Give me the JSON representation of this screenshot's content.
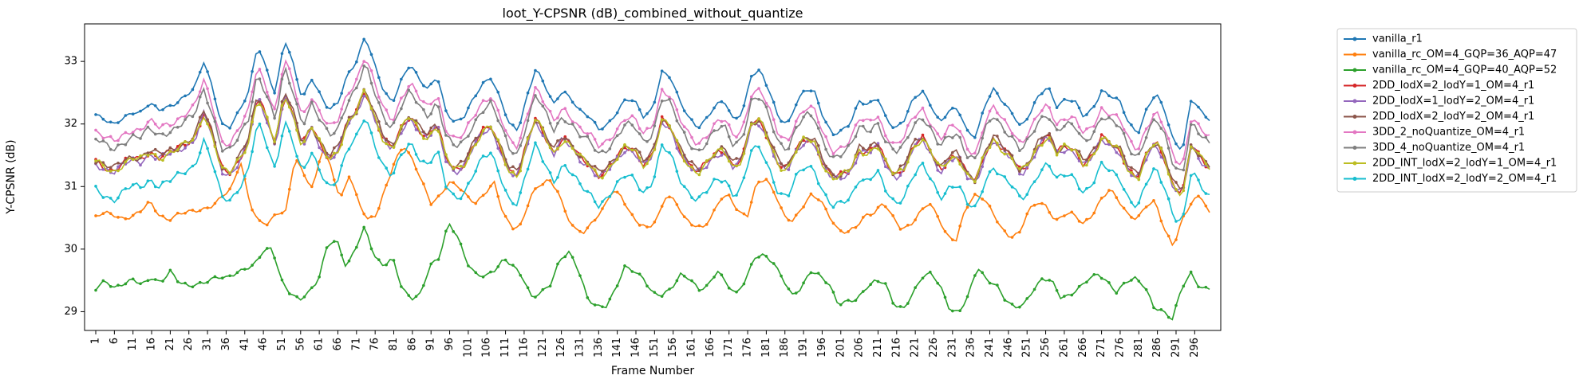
{
  "chart_data": {
    "type": "line",
    "title": "loot_Y-CPSNR (dB)_combined_without_quantize",
    "xlabel": "Frame Number",
    "ylabel": "Y-CPSNR (dB)",
    "xlim": [
      1,
      300
    ],
    "ylim": [
      28.7,
      33.6
    ],
    "x_tick_labels": [
      "1",
      "6",
      "11",
      "16",
      "21",
      "26",
      "31",
      "36",
      "41",
      "46",
      "51",
      "56",
      "61",
      "66",
      "71",
      "76",
      "81",
      "86",
      "91",
      "96",
      "101",
      "106",
      "111",
      "116",
      "121",
      "126",
      "131",
      "136",
      "141",
      "146",
      "151",
      "156",
      "161",
      "166",
      "171",
      "176",
      "181",
      "186",
      "191",
      "196",
      "201",
      "206",
      "211",
      "216",
      "221",
      "226",
      "231",
      "236",
      "241",
      "246",
      "251",
      "256",
      "261",
      "266",
      "271",
      "276",
      "281",
      "286",
      "291",
      "296"
    ],
    "y_ticks": [
      29,
      30,
      31,
      32,
      33
    ],
    "grid": false,
    "legend_position": "outside-right",
    "series": [
      {
        "name": "vanilla_r1",
        "color": "#1f77b4",
        "base": 32.25,
        "amp": 1.0,
        "values": [
          32.15,
          32.05,
          31.98,
          32.1,
          32.2,
          32.18,
          32.32,
          32.22,
          32.28,
          32.35,
          32.45,
          32.55,
          33.0,
          32.6,
          32.0,
          31.95,
          32.2,
          32.5,
          33.28,
          32.9,
          32.45,
          33.35,
          32.95,
          32.4,
          32.75,
          32.45,
          32.2,
          32.35,
          32.8,
          33.0,
          33.4,
          32.95,
          32.55,
          32.35,
          32.7,
          32.95,
          32.7,
          32.55,
          32.8,
          32.2,
          32.0,
          32.1,
          32.4,
          32.65,
          32.75,
          32.4,
          32.0,
          31.9,
          32.45,
          32.9,
          32.6,
          32.3,
          32.55,
          32.4,
          32.2,
          32.1,
          31.9,
          32.0,
          32.2,
          32.4,
          32.35,
          32.1,
          32.25,
          32.85,
          32.75,
          32.35,
          32.1,
          31.95,
          32.1,
          32.3,
          32.35,
          32.05,
          32.2,
          32.8,
          32.85,
          32.5,
          32.1,
          32.0,
          32.35,
          32.55,
          32.5,
          32.1,
          31.85,
          31.9,
          32.0,
          32.35,
          32.3,
          32.45,
          32.1,
          31.9,
          32.05,
          32.4,
          32.55,
          32.3,
          32.0,
          32.2,
          32.25,
          31.9,
          31.8,
          32.3,
          32.55,
          32.35,
          32.2,
          31.95,
          32.15,
          32.45,
          32.6,
          32.3,
          32.4,
          32.35,
          32.1,
          32.25,
          32.55,
          32.45,
          32.35,
          32.0,
          31.85,
          32.25,
          32.5,
          32.2,
          31.7,
          31.6,
          32.45,
          32.2,
          32.05
        ]
      },
      {
        "name": "vanilla_rc_OM=4_GQP=36_AQP=47",
        "color": "#ff7f0e",
        "base": 30.6,
        "amp": 1.0,
        "values": [
          30.5,
          30.58,
          30.55,
          30.5,
          30.52,
          30.6,
          30.75,
          30.55,
          30.48,
          30.55,
          30.58,
          30.6,
          30.65,
          30.72,
          30.85,
          30.95,
          31.4,
          30.75,
          30.45,
          30.4,
          30.55,
          30.6,
          31.5,
          31.2,
          30.95,
          31.6,
          31.3,
          30.8,
          31.2,
          30.75,
          30.45,
          30.55,
          31.0,
          31.4,
          31.65,
          31.4,
          31.1,
          30.75,
          30.85,
          31.05,
          31.0,
          30.85,
          30.75,
          30.9,
          31.05,
          30.55,
          30.35,
          30.4,
          30.85,
          31.0,
          31.1,
          30.95,
          30.55,
          30.3,
          30.25,
          30.45,
          30.65,
          30.95,
          30.85,
          30.55,
          30.4,
          30.35,
          30.5,
          30.85,
          30.75,
          30.5,
          30.4,
          30.35,
          30.5,
          30.8,
          30.85,
          30.6,
          30.55,
          31.05,
          31.1,
          30.9,
          30.55,
          30.45,
          30.65,
          30.85,
          30.8,
          30.55,
          30.3,
          30.25,
          30.35,
          30.55,
          30.6,
          30.75,
          30.5,
          30.3,
          30.4,
          30.6,
          30.75,
          30.5,
          30.2,
          30.15,
          30.65,
          30.85,
          30.8,
          30.6,
          30.35,
          30.2,
          30.25,
          30.6,
          30.75,
          30.7,
          30.45,
          30.55,
          30.55,
          30.4,
          30.55,
          30.8,
          30.95,
          30.75,
          30.55,
          30.5,
          30.7,
          30.75,
          30.3,
          30.05,
          30.5,
          30.75,
          30.85,
          30.55
        ]
      },
      {
        "name": "vanilla_rc_OM=4_GQP=40_AQP=52",
        "color": "#2ca02c",
        "base": 29.5,
        "amp": 1.0,
        "values": [
          29.35,
          29.5,
          29.4,
          29.45,
          29.5,
          29.42,
          29.55,
          29.48,
          29.65,
          29.45,
          29.4,
          29.45,
          29.5,
          29.55,
          29.52,
          29.6,
          29.7,
          29.75,
          29.95,
          30.0,
          29.5,
          29.3,
          29.2,
          29.3,
          29.5,
          30.1,
          30.15,
          29.7,
          30.0,
          30.35,
          29.9,
          29.75,
          29.85,
          29.35,
          29.2,
          29.3,
          29.75,
          29.85,
          30.4,
          30.2,
          29.8,
          29.6,
          29.55,
          29.65,
          29.85,
          29.75,
          29.55,
          29.2,
          29.3,
          29.45,
          29.85,
          29.95,
          29.65,
          29.2,
          29.1,
          29.1,
          29.35,
          29.7,
          29.65,
          29.55,
          29.3,
          29.25,
          29.35,
          29.6,
          29.55,
          29.35,
          29.4,
          29.65,
          29.45,
          29.3,
          29.5,
          29.85,
          29.9,
          29.8,
          29.55,
          29.25,
          29.35,
          29.65,
          29.6,
          29.45,
          29.1,
          29.15,
          29.2,
          29.4,
          29.5,
          29.45,
          29.1,
          29.05,
          29.3,
          29.55,
          29.6,
          29.4,
          29.05,
          29.0,
          29.25,
          29.7,
          29.5,
          29.45,
          29.2,
          29.05,
          29.1,
          29.35,
          29.55,
          29.5,
          29.2,
          29.25,
          29.4,
          29.55,
          29.6,
          29.45,
          29.3,
          29.5,
          29.55,
          29.4,
          29.05,
          29.0,
          28.9,
          29.4,
          29.6,
          29.35,
          29.38
        ]
      },
      {
        "name": "2DD_lodX=2_lodY=1_OM=4_r1",
        "color": "#d62728"
      },
      {
        "name": "2DD_lodX=1_lodY=2_OM=4_r1",
        "color": "#9467bd"
      },
      {
        "name": "2DD_lodX=2_lodY=2_OM=4_r1",
        "color": "#8c564b"
      },
      {
        "name": "3DD_2_noQuantize_OM=4_r1",
        "color": "#e377c2"
      },
      {
        "name": "3DD_4_noQuantize_OM=4_r1",
        "color": "#7f7f7f"
      },
      {
        "name": "2DD_INT_lodX=2_lodY=1_OM=4_r1",
        "color": "#bcbd22"
      },
      {
        "name": "2DD_INT_lodX=2_lodY=2_OM=4_r1",
        "color": "#17becf"
      }
    ]
  }
}
